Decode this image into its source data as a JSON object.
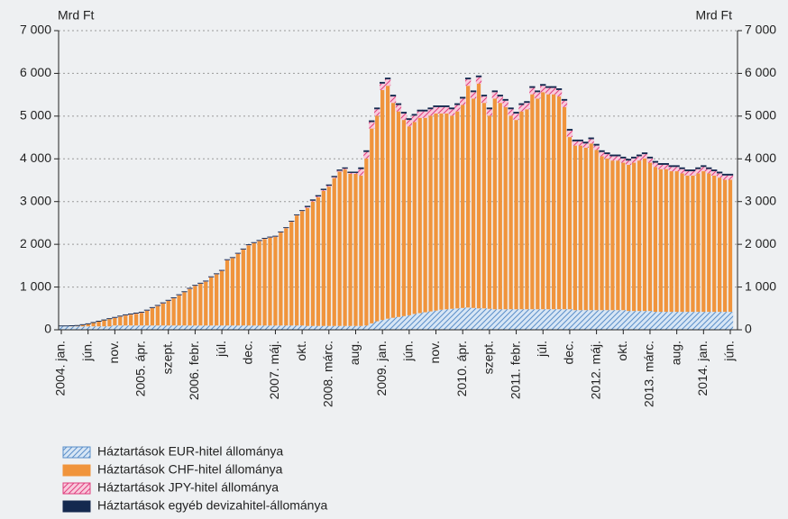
{
  "chart_data": {
    "type": "stacked_bar",
    "y_unit": "Mrd Ft",
    "y2_unit": "Mrd Ft",
    "categories": [
      "2004. jan.",
      null,
      null,
      null,
      null,
      "jún.",
      null,
      null,
      null,
      null,
      "nov.",
      null,
      null,
      null,
      null,
      "2005. ápr.",
      null,
      null,
      null,
      null,
      "szept.",
      null,
      null,
      null,
      null,
      "2006. febr.",
      null,
      null,
      null,
      null,
      "júl.",
      null,
      null,
      null,
      null,
      "dec.",
      null,
      null,
      null,
      null,
      "2007. máj.",
      null,
      null,
      null,
      null,
      "okt.",
      null,
      null,
      null,
      null,
      "2008. márc.",
      null,
      null,
      null,
      null,
      "aug.",
      null,
      null,
      null,
      null,
      "2009. jan.",
      null,
      null,
      null,
      null,
      "jún.",
      null,
      null,
      null,
      null,
      "nov.",
      null,
      null,
      null,
      null,
      "2010. ápr.",
      null,
      null,
      null,
      null,
      "szept.",
      null,
      null,
      null,
      null,
      "2011. febr.",
      null,
      null,
      null,
      null,
      "júl.",
      null,
      null,
      null,
      null,
      "dec.",
      null,
      null,
      null,
      null,
      "2012. máj.",
      null,
      null,
      null,
      null,
      "okt.",
      null,
      null,
      null,
      null,
      "2013. márc.",
      null,
      null,
      null,
      null,
      "aug.",
      null,
      null,
      null,
      null,
      "2014. jan.",
      null,
      null,
      null,
      null,
      "jún."
    ],
    "series": [
      {
        "name": "Háztartások EUR-hitel állománya",
        "color": "#5b8fc9",
        "fill_pattern": "diagonal",
        "values": [
          80,
          80,
          80,
          80,
          80,
          80,
          80,
          80,
          80,
          80,
          100,
          100,
          100,
          100,
          100,
          100,
          100,
          100,
          100,
          100,
          100,
          100,
          100,
          100,
          100,
          100,
          100,
          100,
          100,
          100,
          100,
          100,
          100,
          100,
          100,
          100,
          100,
          100,
          100,
          100,
          100,
          100,
          100,
          100,
          100,
          100,
          90,
          90,
          90,
          90,
          90,
          90,
          90,
          90,
          90,
          90,
          90,
          100,
          150,
          200,
          230,
          260,
          280,
          300,
          320,
          340,
          370,
          390,
          410,
          430,
          450,
          470,
          480,
          490,
          500,
          510,
          520,
          510,
          500,
          500,
          490,
          480,
          480,
          480,
          480,
          480,
          480,
          480,
          480,
          480,
          480,
          480,
          480,
          480,
          480,
          480,
          460,
          460,
          460,
          460,
          460,
          460,
          460,
          460,
          460,
          460,
          440,
          440,
          440,
          440,
          440,
          420,
          420,
          420,
          420,
          420,
          420,
          420,
          420,
          420,
          420,
          420,
          420,
          420,
          420,
          420
        ]
      },
      {
        "name": "Háztartások CHF-hitel állománya",
        "color": "#f0943c",
        "fill_pattern": "vertical",
        "values": [
          0,
          0,
          5,
          10,
          30,
          50,
          80,
          110,
          140,
          170,
          175,
          205,
          235,
          255,
          275,
          295,
          345,
          405,
          455,
          515,
          575,
          635,
          705,
          775,
          855,
          925,
          975,
          1025,
          1125,
          1195,
          1275,
          1525,
          1575,
          1675,
          1775,
          1875,
          1925,
          1975,
          2025,
          2055,
          2075,
          2175,
          2275,
          2425,
          2575,
          2675,
          2760,
          2910,
          3010,
          3160,
          3260,
          3460,
          3610,
          3660,
          3560,
          3560,
          3520,
          3910,
          4560,
          4810,
          5380,
          5450,
          5030,
          4810,
          4590,
          4420,
          4490,
          4570,
          4550,
          4580,
          4610,
          4590,
          4580,
          4520,
          4610,
          4750,
          5190,
          4900,
          5260,
          4810,
          4520,
          4930,
          4830,
          4730,
          4530,
          4430,
          4630,
          4680,
          5030,
          4930,
          5080,
          5030,
          5030,
          4980,
          4730,
          4030,
          3850,
          3850,
          3800,
          3900,
          3750,
          3600,
          3550,
          3500,
          3500,
          3450,
          3420,
          3470,
          3520,
          3570,
          3470,
          3390,
          3340,
          3340,
          3290,
          3290,
          3240,
          3190,
          3190,
          3240,
          3290,
          3240,
          3190,
          3140,
          3090,
          3090
        ]
      },
      {
        "name": "Háztartások JPY-hitel állománya",
        "color": "#e0407f",
        "fill_pattern": "diagonal",
        "values": [
          0,
          0,
          0,
          0,
          0,
          0,
          0,
          0,
          0,
          0,
          5,
          5,
          5,
          5,
          5,
          5,
          5,
          5,
          5,
          5,
          5,
          5,
          5,
          5,
          5,
          5,
          5,
          5,
          5,
          5,
          5,
          5,
          5,
          5,
          5,
          5,
          5,
          5,
          5,
          5,
          5,
          5,
          5,
          5,
          5,
          5,
          20,
          20,
          20,
          20,
          20,
          20,
          20,
          20,
          20,
          20,
          150,
          150,
          150,
          150,
          150,
          150,
          150,
          150,
          150,
          150,
          150,
          150,
          150,
          150,
          150,
          150,
          150,
          150,
          150,
          150,
          150,
          150,
          150,
          150,
          150,
          150,
          150,
          150,
          150,
          150,
          150,
          150,
          150,
          150,
          150,
          150,
          150,
          150,
          150,
          150,
          100,
          100,
          100,
          100,
          100,
          100,
          100,
          100,
          100,
          100,
          100,
          100,
          100,
          100,
          100,
          100,
          100,
          100,
          100,
          100,
          100,
          100,
          100,
          100,
          100,
          100,
          100,
          100,
          100,
          100
        ]
      },
      {
        "name": "Háztartások egyéb devizahitel-állománya",
        "color": "#14294f",
        "fill_pattern": "solid",
        "values": [
          20,
          20,
          20,
          20,
          20,
          20,
          20,
          20,
          20,
          20,
          20,
          20,
          20,
          20,
          20,
          20,
          20,
          20,
          20,
          20,
          20,
          20,
          20,
          20,
          20,
          20,
          20,
          20,
          20,
          20,
          20,
          20,
          20,
          20,
          20,
          20,
          20,
          20,
          20,
          20,
          20,
          20,
          20,
          20,
          20,
          20,
          30,
          30,
          30,
          30,
          30,
          30,
          30,
          30,
          30,
          30,
          40,
          40,
          40,
          40,
          40,
          40,
          40,
          40,
          40,
          40,
          40,
          40,
          40,
          40,
          40,
          40,
          40,
          40,
          40,
          40,
          40,
          40,
          40,
          40,
          40,
          40,
          40,
          40,
          40,
          40,
          40,
          40,
          40,
          40,
          40,
          40,
          40,
          40,
          40,
          40,
          40,
          40,
          40,
          40,
          40,
          40,
          40,
          40,
          40,
          40,
          40,
          40,
          40,
          40,
          40,
          40,
          40,
          40,
          40,
          40,
          40,
          40,
          40,
          40,
          40,
          40,
          40,
          40,
          40,
          40
        ]
      }
    ],
    "ylim": [
      0,
      7000
    ],
    "yticks": [
      0,
      {
        "value": 1000,
        "label": "1 000"
      },
      {
        "value": 2000,
        "label": "2 000"
      },
      {
        "value": 3000,
        "label": "3 000"
      },
      {
        "value": 4000,
        "label": "4 000"
      },
      {
        "value": 5000,
        "label": "5 000"
      },
      {
        "value": 6000,
        "label": "6 000"
      },
      {
        "value": 7000,
        "label": "7 000"
      }
    ],
    "y2lim": [
      0,
      7000
    ],
    "y2ticks": [
      0,
      {
        "value": 1000,
        "label": "1 000"
      },
      {
        "value": 2000,
        "label": "2 000"
      },
      {
        "value": 3000,
        "label": "3 000"
      },
      {
        "value": 4000,
        "label": "4 000"
      },
      {
        "value": 5000,
        "label": "5 000"
      },
      {
        "value": 6000,
        "label": "6 000"
      },
      {
        "value": 7000,
        "label": "7 000"
      }
    ],
    "grid": true,
    "legend": "bottom"
  }
}
